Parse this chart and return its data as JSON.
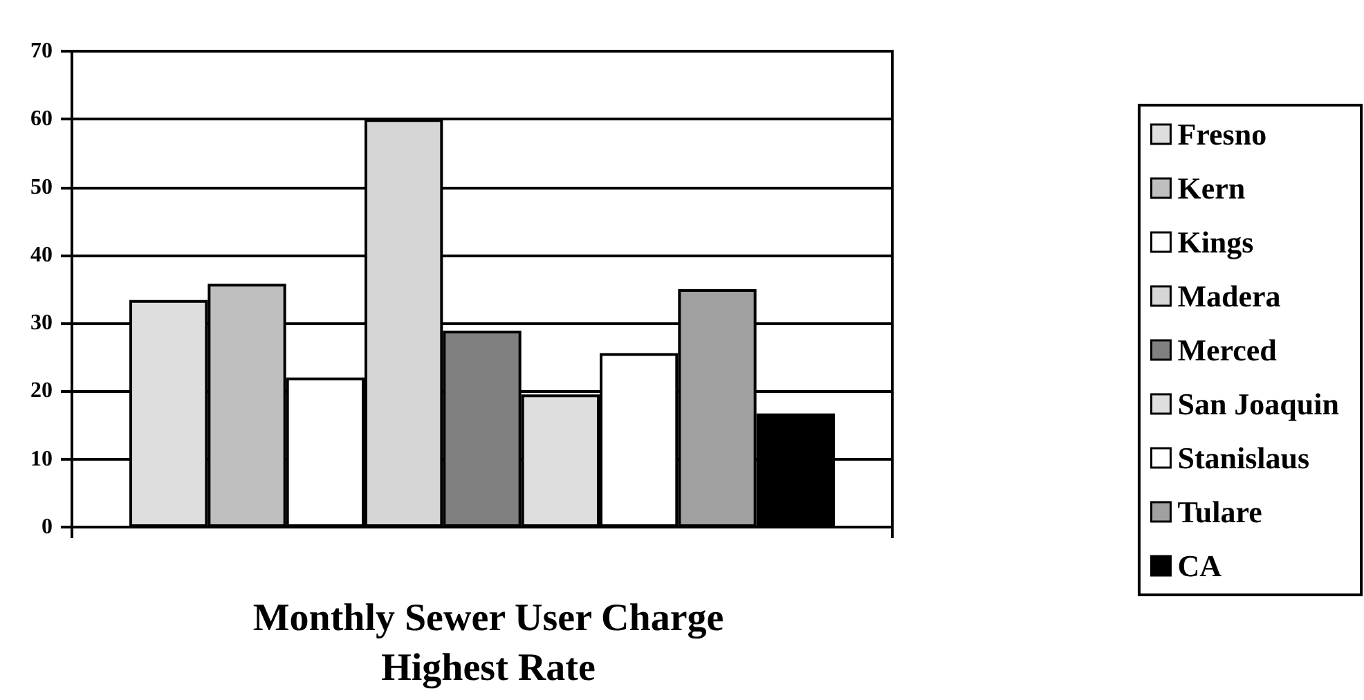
{
  "chart_data": {
    "type": "bar",
    "title": "Monthly Sewer User Charge",
    "subtitle": "Highest Rate",
    "categories": [
      null
    ],
    "series": [
      {
        "name": "Fresno",
        "color": "#dedede",
        "values": [
          33.4
        ]
      },
      {
        "name": "Kern",
        "color": "#bfbfbf",
        "values": [
          35.8
        ]
      },
      {
        "name": "Kings",
        "color": "#ffffff",
        "values": [
          22
        ]
      },
      {
        "name": "Madera",
        "color": "#d6d6d6",
        "values": [
          60
        ]
      },
      {
        "name": "Merced",
        "color": "#808080",
        "values": [
          28.9
        ]
      },
      {
        "name": "San Joaquin",
        "color": "#dedede",
        "values": [
          19.5
        ]
      },
      {
        "name": "Stanislaus",
        "color": "#ffffff",
        "values": [
          25.6
        ]
      },
      {
        "name": "Tulare",
        "color": "#a0a0a0",
        "values": [
          35
        ]
      },
      {
        "name": "CA",
        "color": "#000000",
        "values": [
          16.7
        ]
      }
    ],
    "ylim": [
      0,
      70
    ],
    "yticks": [
      0,
      10,
      20,
      30,
      40,
      50,
      60,
      70
    ],
    "grid": "y",
    "legend": "right"
  }
}
